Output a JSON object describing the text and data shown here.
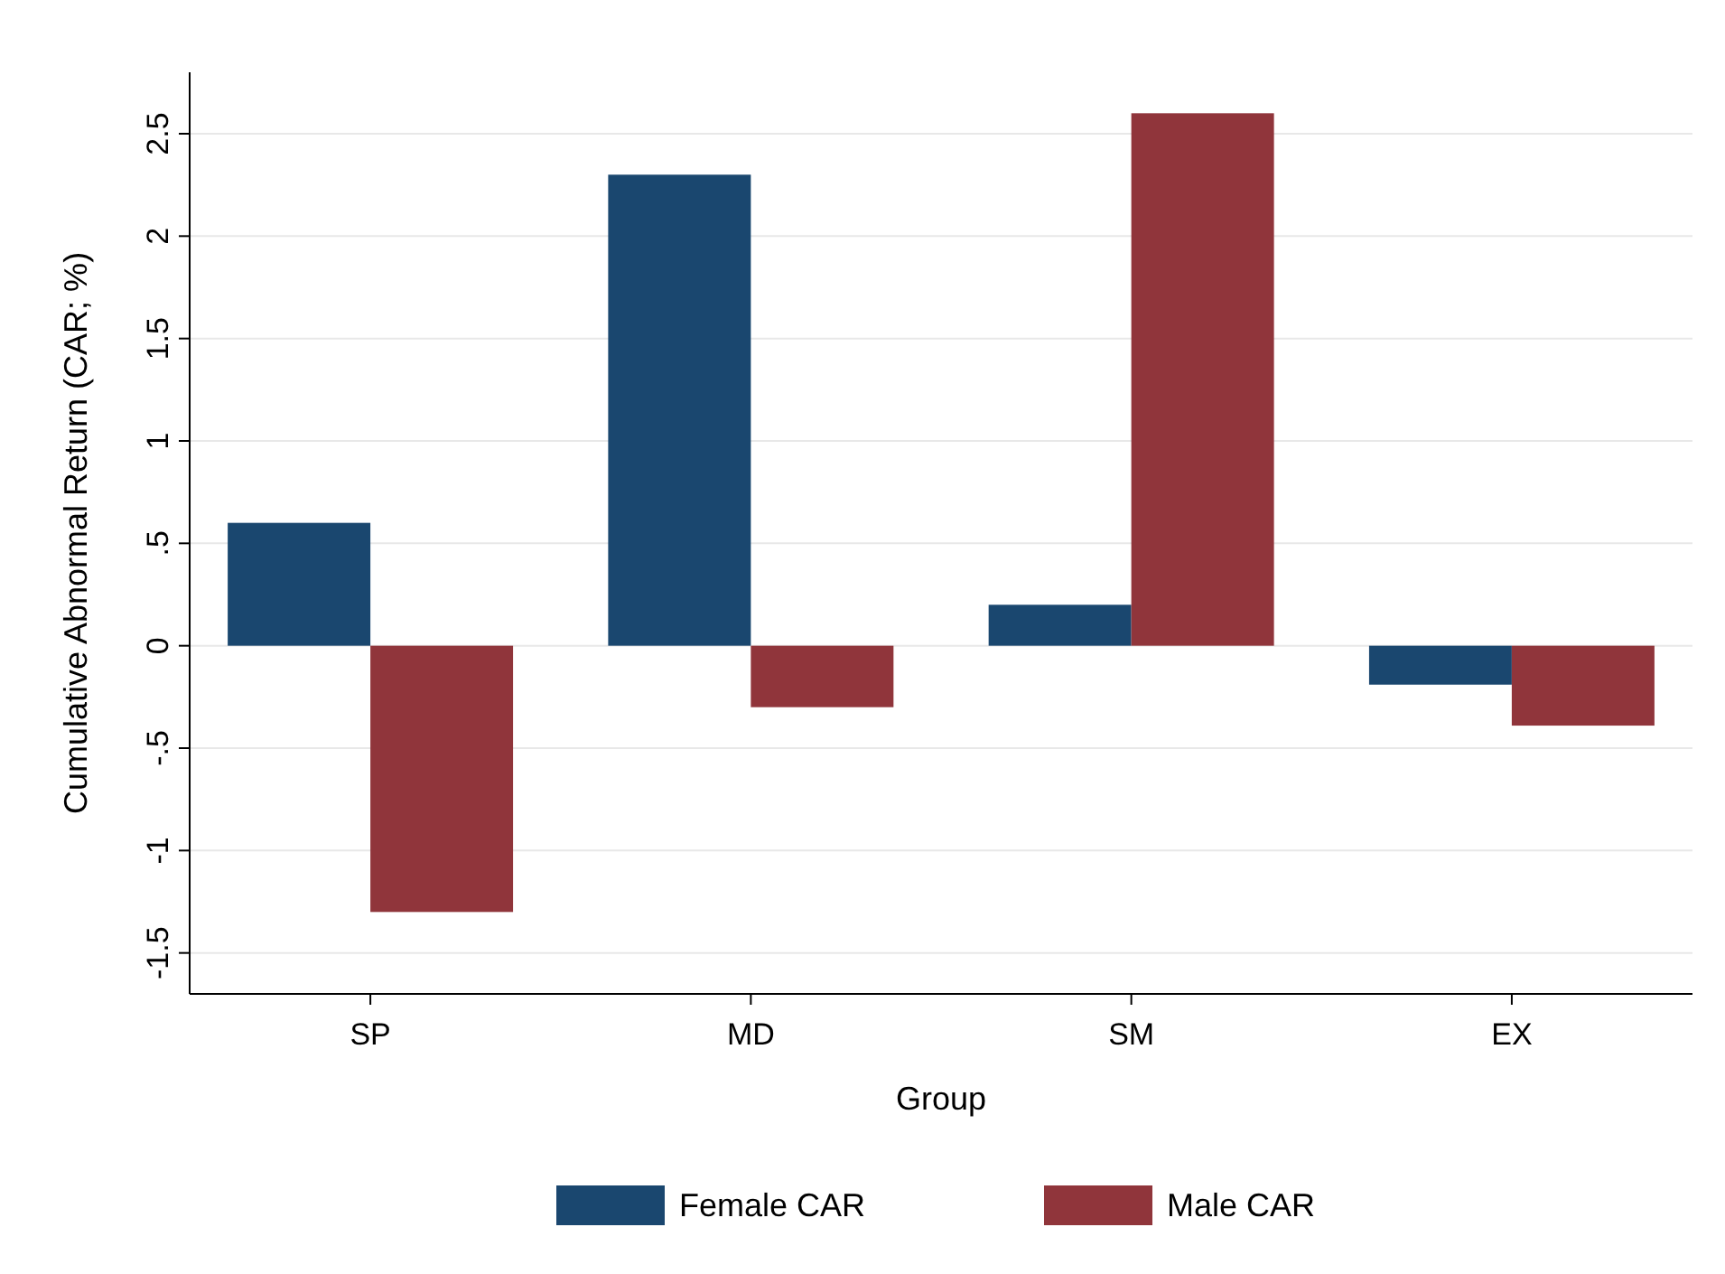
{
  "chart_data": {
    "type": "bar",
    "xlabel": "Group",
    "ylabel": "Cumulative Abnormal Return (CAR; %)",
    "categories": [
      "SP",
      "MD",
      "SM",
      "EX"
    ],
    "series": [
      {
        "name": "Female CAR",
        "color": "#1a476f",
        "values": [
          0.6,
          2.3,
          0.2,
          -0.19
        ]
      },
      {
        "name": "Male CAR",
        "color": "#90353b",
        "values": [
          -1.3,
          -0.3,
          2.6,
          -0.39
        ]
      }
    ],
    "ylim": [
      -1.7,
      2.8
    ],
    "yticks": [
      {
        "value": -1.5,
        "label": "-1.5"
      },
      -1,
      {
        "value": -0.5,
        "label": "-.5"
      },
      0,
      {
        "value": 0.5,
        "label": ".5"
      },
      1,
      1.5,
      2,
      2.5
    ],
    "grid": "y",
    "legend": "bottom"
  }
}
